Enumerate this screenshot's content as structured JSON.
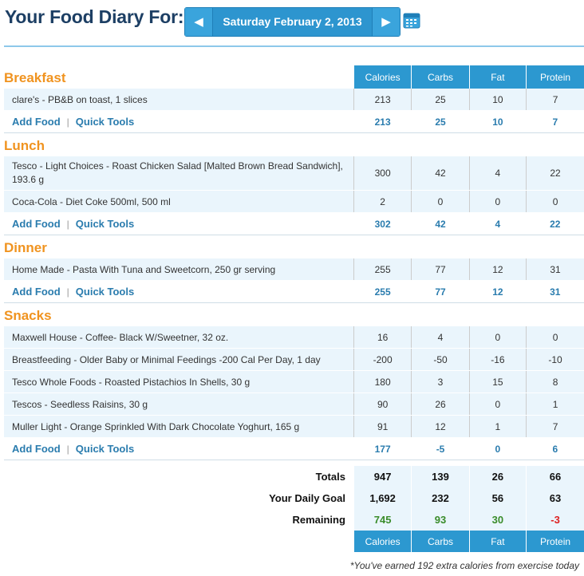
{
  "header": {
    "title": "Your Food Diary For:",
    "date": "Saturday February 2, 2013",
    "prev_glyph": "◀",
    "next_glyph": "▶",
    "calendar_icon": "calendar-icon"
  },
  "columns": [
    "Calories",
    "Carbs",
    "Fat",
    "Protein"
  ],
  "links": {
    "add_food": "Add Food",
    "quick_tools": "Quick Tools",
    "separator": "|"
  },
  "meals": [
    {
      "name": "Breakfast",
      "foods": [
        {
          "name": "clare's - PB&B on toast, 1 slices",
          "values": [
            "213",
            "25",
            "10",
            "7"
          ]
        }
      ],
      "totals": [
        "213",
        "25",
        "10",
        "7"
      ]
    },
    {
      "name": "Lunch",
      "foods": [
        {
          "name": "Tesco - Light Choices - Roast Chicken Salad [Malted Brown Bread Sandwich], 193.6 g",
          "values": [
            "300",
            "42",
            "4",
            "22"
          ]
        },
        {
          "name": "Coca-Cola - Diet Coke 500ml, 500 ml",
          "values": [
            "2",
            "0",
            "0",
            "0"
          ]
        }
      ],
      "totals": [
        "302",
        "42",
        "4",
        "22"
      ]
    },
    {
      "name": "Dinner",
      "foods": [
        {
          "name": "Home Made - Pasta With Tuna and Sweetcorn, 250 gr serving",
          "values": [
            "255",
            "77",
            "12",
            "31"
          ]
        }
      ],
      "totals": [
        "255",
        "77",
        "12",
        "31"
      ]
    },
    {
      "name": "Snacks",
      "foods": [
        {
          "name": "Maxwell House - Coffee- Black W/Sweetner, 32 oz.",
          "values": [
            "16",
            "4",
            "0",
            "0"
          ]
        },
        {
          "name": "Breastfeeding - Older Baby or Minimal Feedings -200 Cal Per Day, 1 day",
          "values": [
            "-200",
            "-50",
            "-16",
            "-10"
          ]
        },
        {
          "name": "Tesco Whole Foods - Roasted Pistachios In Shells, 30 g",
          "values": [
            "180",
            "3",
            "15",
            "8"
          ]
        },
        {
          "name": "Tescos - Seedless Raisins, 30 g",
          "values": [
            "90",
            "26",
            "0",
            "1"
          ]
        },
        {
          "name": "Muller Light - Orange Sprinkled With Dark Chocolate Yoghurt, 165 g",
          "values": [
            "91",
            "12",
            "1",
            "7"
          ]
        }
      ],
      "totals": [
        "177",
        "-5",
        "0",
        "6"
      ]
    }
  ],
  "summary": {
    "totals_label": "Totals",
    "totals": [
      "947",
      "139",
      "26",
      "66"
    ],
    "goal_label": "Your Daily Goal",
    "goal": [
      "1,692",
      "232",
      "56",
      "63"
    ],
    "remaining_label": "Remaining",
    "remaining": [
      "745",
      "93",
      "30",
      "-3"
    ],
    "remaining_status": [
      "positive",
      "positive",
      "positive",
      "negative"
    ]
  },
  "footnote": "*You've earned 192 extra calories from exercise today",
  "colors": {
    "title": "#1d3f64",
    "accent": "#2c98d0",
    "meal_heading": "#f0931f",
    "link": "#2a7cae",
    "positive": "#3a8c2a",
    "negative": "#dd2222",
    "row_bg": "#eaf5fc"
  }
}
